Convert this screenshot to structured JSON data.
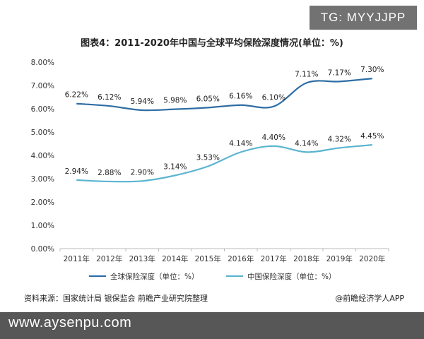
{
  "overlay_tag": "TG: MYYJJPP",
  "watermark_url": "www.aysenpu.com",
  "footer": {
    "source": "资料来源：国家统计局 银保监会 前瞻产业研究院整理",
    "brand": "@前瞻经济学人APP"
  },
  "colors": {
    "global": "#2e6da4",
    "china": "#5ab4cf"
  },
  "chart_data": {
    "type": "line",
    "title": "图表4：2011-2020年中国与全球平均保险深度情况(单位：%)",
    "xlabel": "",
    "ylabel": "",
    "categories": [
      "2011年",
      "2012年",
      "2013年",
      "2014年",
      "2015年",
      "2016年",
      "2017年",
      "2018年",
      "2019年",
      "2020年"
    ],
    "ylim": [
      0,
      8
    ],
    "yticks": [
      "0.00%",
      "1.00%",
      "2.00%",
      "3.00%",
      "4.00%",
      "5.00%",
      "6.00%",
      "7.00%",
      "8.00%"
    ],
    "grid": false,
    "legend_position": "bottom",
    "series": [
      {
        "name": "全球保险深度（单位：%）",
        "values": [
          6.22,
          6.12,
          5.94,
          5.98,
          6.05,
          6.16,
          6.1,
          7.11,
          7.17,
          7.3
        ],
        "labels": [
          "6.22%",
          "6.12%",
          "5.94%",
          "5.98%",
          "6.05%",
          "6.16%",
          "6.10%",
          "7.11%",
          "7.17%",
          "7.30%"
        ]
      },
      {
        "name": "中国保险深度（单位：%）",
        "values": [
          2.94,
          2.88,
          2.9,
          3.14,
          3.53,
          4.14,
          4.4,
          4.14,
          4.32,
          4.45
        ],
        "labels": [
          "2.94%",
          "2.88%",
          "2.90%",
          "3.14%",
          "3.53%",
          "4.14%",
          "4.40%",
          "4.14%",
          "4.32%",
          "4.45%"
        ]
      }
    ]
  }
}
